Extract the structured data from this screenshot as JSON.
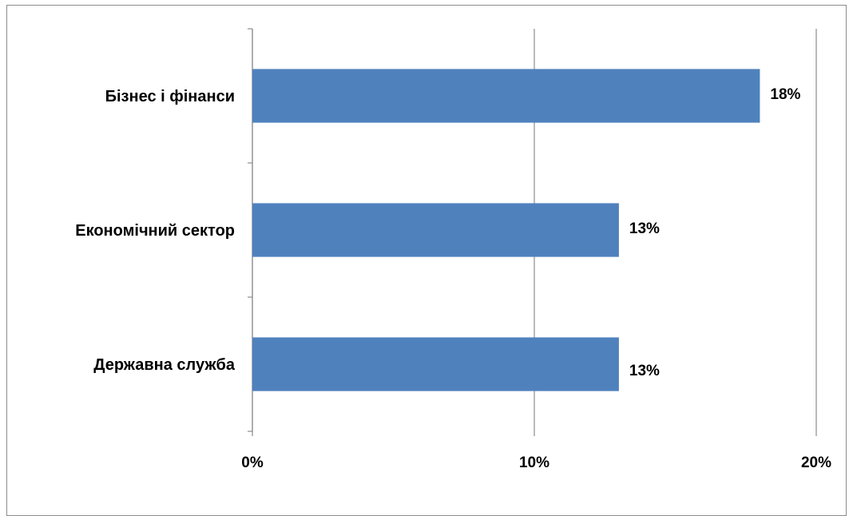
{
  "chart_data": {
    "type": "bar",
    "orientation": "horizontal",
    "categories": [
      "Бізнес і фінанси",
      "Економічний сектор",
      "Державна служба"
    ],
    "values": [
      18,
      13,
      13
    ],
    "data_labels": [
      "18%",
      "13%",
      "13%"
    ],
    "x_ticks": [
      "0%",
      "10%",
      "20%"
    ],
    "xlim": [
      0,
      20
    ],
    "grid": "vertical",
    "legend": "none",
    "bar_color": "#4f81bd",
    "title": "",
    "xlabel": "",
    "ylabel": ""
  }
}
